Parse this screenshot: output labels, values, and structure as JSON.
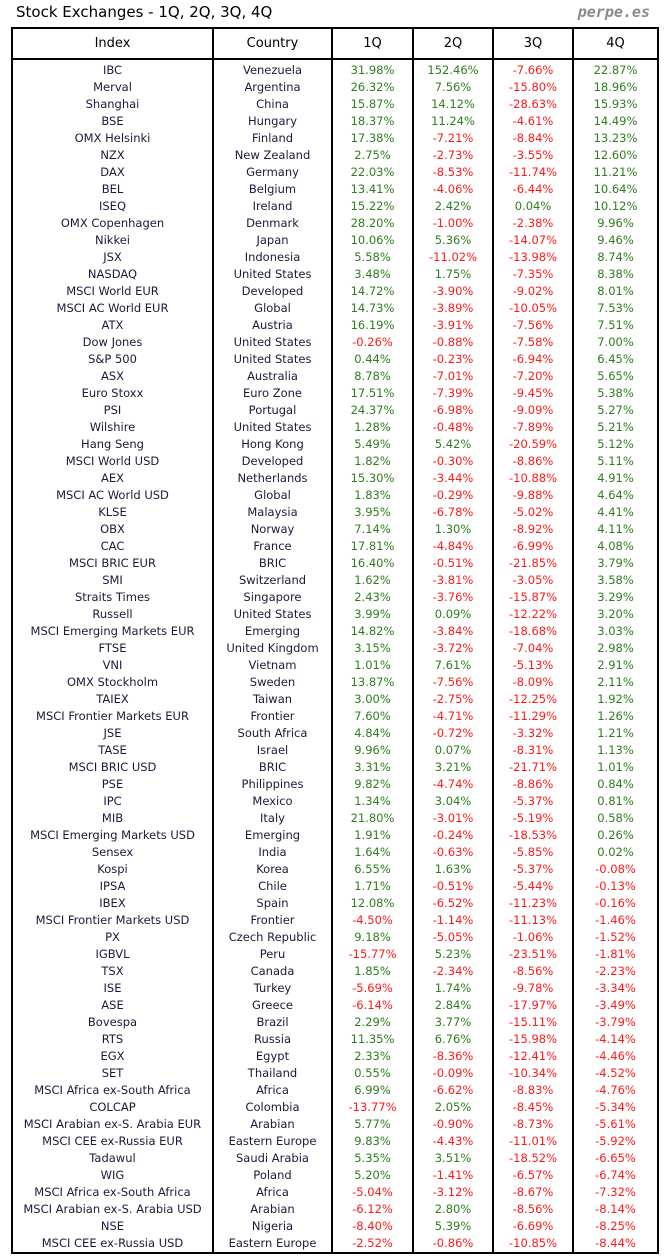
{
  "title": "Stock Exchanges - 1Q, 2Q, 3Q, 4Q",
  "brand": "perpe.es",
  "colors": {
    "positive": "#2e7d1e",
    "negative": "#ff1a1a"
  },
  "headers": [
    "Index",
    "Country",
    "1Q",
    "2Q",
    "3Q",
    "4Q"
  ],
  "rows": [
    [
      "IBC",
      "Venezuela",
      "31.98%",
      "152.46%",
      "-7.66%",
      "22.87%"
    ],
    [
      "Merval",
      "Argentina",
      "26.32%",
      "7.56%",
      "-15.80%",
      "18.96%"
    ],
    [
      "Shanghai",
      "China",
      "15.87%",
      "14.12%",
      "-28.63%",
      "15.93%"
    ],
    [
      "BSE",
      "Hungary",
      "18.37%",
      "11.24%",
      "-4.61%",
      "14.49%"
    ],
    [
      "OMX Helsinki",
      "Finland",
      "17.38%",
      "-7.21%",
      "-8.84%",
      "13.23%"
    ],
    [
      "NZX",
      "New Zealand",
      "2.75%",
      "-2.73%",
      "-3.55%",
      "12.60%"
    ],
    [
      "DAX",
      "Germany",
      "22.03%",
      "-8.53%",
      "-11.74%",
      "11.21%"
    ],
    [
      "BEL",
      "Belgium",
      "13.41%",
      "-4.06%",
      "-6.44%",
      "10.64%"
    ],
    [
      "ISEQ",
      "Ireland",
      "15.22%",
      "2.42%",
      "0.04%",
      "10.12%"
    ],
    [
      "OMX Copenhagen",
      "Denmark",
      "28.20%",
      "-1.00%",
      "-2.38%",
      "9.96%"
    ],
    [
      "Nikkei",
      "Japan",
      "10.06%",
      "5.36%",
      "-14.07%",
      "9.46%"
    ],
    [
      "JSX",
      "Indonesia",
      "5.58%",
      "-11.02%",
      "-13.98%",
      "8.74%"
    ],
    [
      "NASDAQ",
      "United States",
      "3.48%",
      "1.75%",
      "-7.35%",
      "8.38%"
    ],
    [
      "MSCI World EUR",
      "Developed",
      "14.72%",
      "-3.90%",
      "-9.02%",
      "8.01%"
    ],
    [
      "MSCI AC World EUR",
      "Global",
      "14.73%",
      "-3.89%",
      "-10.05%",
      "7.53%"
    ],
    [
      "ATX",
      "Austria",
      "16.19%",
      "-3.91%",
      "-7.56%",
      "7.51%"
    ],
    [
      "Dow Jones",
      "United States",
      "-0.26%",
      "-0.88%",
      "-7.58%",
      "7.00%"
    ],
    [
      "S&P 500",
      "United States",
      "0.44%",
      "-0.23%",
      "-6.94%",
      "6.45%"
    ],
    [
      "ASX",
      "Australia",
      "8.78%",
      "-7.01%",
      "-7.20%",
      "5.65%"
    ],
    [
      "Euro Stoxx",
      "Euro Zone",
      "17.51%",
      "-7.39%",
      "-9.45%",
      "5.38%"
    ],
    [
      "PSI",
      "Portugal",
      "24.37%",
      "-6.98%",
      "-9.09%",
      "5.27%"
    ],
    [
      "Wilshire",
      "United States",
      "1.28%",
      "-0.48%",
      "-7.89%",
      "5.21%"
    ],
    [
      "Hang Seng",
      "Hong Kong",
      "5.49%",
      "5.42%",
      "-20.59%",
      "5.12%"
    ],
    [
      "MSCI World USD",
      "Developed",
      "1.82%",
      "-0.30%",
      "-8.86%",
      "5.11%"
    ],
    [
      "AEX",
      "Netherlands",
      "15.30%",
      "-3.44%",
      "-10.88%",
      "4.91%"
    ],
    [
      "MSCI AC World USD",
      "Global",
      "1.83%",
      "-0.29%",
      "-9.88%",
      "4.64%"
    ],
    [
      "KLSE",
      "Malaysia",
      "3.95%",
      "-6.78%",
      "-5.02%",
      "4.41%"
    ],
    [
      "OBX",
      "Norway",
      "7.14%",
      "1.30%",
      "-8.92%",
      "4.11%"
    ],
    [
      "CAC",
      "France",
      "17.81%",
      "-4.84%",
      "-6.99%",
      "4.08%"
    ],
    [
      "MSCI BRIC EUR",
      "BRIC",
      "16.40%",
      "-0.51%",
      "-21.85%",
      "3.79%"
    ],
    [
      "SMI",
      "Switzerland",
      "1.62%",
      "-3.81%",
      "-3.05%",
      "3.58%"
    ],
    [
      "Straits Times",
      "Singapore",
      "2.43%",
      "-3.76%",
      "-15.87%",
      "3.29%"
    ],
    [
      "Russell",
      "United States",
      "3.99%",
      "0.09%",
      "-12.22%",
      "3.20%"
    ],
    [
      "MSCI Emerging Markets EUR",
      "Emerging",
      "14.82%",
      "-3.84%",
      "-18.68%",
      "3.03%"
    ],
    [
      "FTSE",
      "United Kingdom",
      "3.15%",
      "-3.72%",
      "-7.04%",
      "2.98%"
    ],
    [
      "VNI",
      "Vietnam",
      "1.01%",
      "7.61%",
      "-5.13%",
      "2.91%"
    ],
    [
      "OMX Stockholm",
      "Sweden",
      "13.87%",
      "-7.56%",
      "-8.09%",
      "2.11%"
    ],
    [
      "TAIEX",
      "Taiwan",
      "3.00%",
      "-2.75%",
      "-12.25%",
      "1.92%"
    ],
    [
      "MSCI Frontier Markets EUR",
      "Frontier",
      "7.60%",
      "-4.71%",
      "-11.29%",
      "1.26%"
    ],
    [
      "JSE",
      "South Africa",
      "4.84%",
      "-0.72%",
      "-3.32%",
      "1.21%"
    ],
    [
      "TASE",
      "Israel",
      "9.96%",
      "0.07%",
      "-8.31%",
      "1.13%"
    ],
    [
      "MSCI BRIC USD",
      "BRIC",
      "3.31%",
      "3.21%",
      "-21.71%",
      "1.01%"
    ],
    [
      "PSE",
      "Philippines",
      "9.82%",
      "-4.74%",
      "-8.86%",
      "0.84%"
    ],
    [
      "IPC",
      "Mexico",
      "1.34%",
      "3.04%",
      "-5.37%",
      "0.81%"
    ],
    [
      "MIB",
      "Italy",
      "21.80%",
      "-3.01%",
      "-5.19%",
      "0.58%"
    ],
    [
      "MSCI Emerging Markets USD",
      "Emerging",
      "1.91%",
      "-0.24%",
      "-18.53%",
      "0.26%"
    ],
    [
      "Sensex",
      "India",
      "1.64%",
      "-0.63%",
      "-5.85%",
      "0.02%"
    ],
    [
      "Kospi",
      "Korea",
      "6.55%",
      "1.63%",
      "-5.37%",
      "-0.08%"
    ],
    [
      "IPSA",
      "Chile",
      "1.71%",
      "-0.51%",
      "-5.44%",
      "-0.13%"
    ],
    [
      "IBEX",
      "Spain",
      "12.08%",
      "-6.52%",
      "-11.23%",
      "-0.16%"
    ],
    [
      "MSCI Frontier Markets USD",
      "Frontier",
      "-4.50%",
      "-1.14%",
      "-11.13%",
      "-1.46%"
    ],
    [
      "PX",
      "Czech Republic",
      "9.18%",
      "-5.05%",
      "-1.06%",
      "-1.52%"
    ],
    [
      "IGBVL",
      "Peru",
      "-15.77%",
      "5.23%",
      "-23.51%",
      "-1.81%"
    ],
    [
      "TSX",
      "Canada",
      "1.85%",
      "-2.34%",
      "-8.56%",
      "-2.23%"
    ],
    [
      "ISE",
      "Turkey",
      "-5.69%",
      "1.74%",
      "-9.78%",
      "-3.34%"
    ],
    [
      "ASE",
      "Greece",
      "-6.14%",
      "2.84%",
      "-17.97%",
      "-3.49%"
    ],
    [
      "Bovespa",
      "Brazil",
      "2.29%",
      "3.77%",
      "-15.11%",
      "-3.79%"
    ],
    [
      "RTS",
      "Russia",
      "11.35%",
      "6.76%",
      "-15.98%",
      "-4.14%"
    ],
    [
      "EGX",
      "Egypt",
      "2.33%",
      "-8.36%",
      "-12.41%",
      "-4.46%"
    ],
    [
      "SET",
      "Thailand",
      "0.55%",
      "-0.09%",
      "-10.34%",
      "-4.52%"
    ],
    [
      "MSCI Africa ex-South Africa",
      "Africa",
      "6.99%",
      "-6.62%",
      "-8.83%",
      "-4.76%"
    ],
    [
      "COLCAP",
      "Colombia",
      "-13.77%",
      "2.05%",
      "-8.45%",
      "-5.34%"
    ],
    [
      "MSCI Arabian ex-S. Arabia EUR",
      "Arabian",
      "5.77%",
      "-0.90%",
      "-8.73%",
      "-5.61%"
    ],
    [
      "MSCI CEE ex-Russia EUR",
      "Eastern Europe",
      "9.83%",
      "-4.43%",
      "-11.01%",
      "-5.92%"
    ],
    [
      "Tadawul",
      "Saudi Arabia",
      "5.35%",
      "3.51%",
      "-18.52%",
      "-6.65%"
    ],
    [
      "WIG",
      "Poland",
      "5.20%",
      "-1.41%",
      "-6.57%",
      "-6.74%"
    ],
    [
      "MSCI Africa ex-South Africa",
      "Africa",
      "-5.04%",
      "-3.12%",
      "-8.67%",
      "-7.32%"
    ],
    [
      "MSCI Arabian ex-S. Arabia USD",
      "Arabian",
      "-6.12%",
      "2.80%",
      "-8.56%",
      "-8.14%"
    ],
    [
      "NSE",
      "Nigeria",
      "-8.40%",
      "5.39%",
      "-6.69%",
      "-8.25%"
    ],
    [
      "MSCI CEE ex-Russia USD",
      "Eastern Europe",
      "-2.52%",
      "-0.86%",
      "-10.85%",
      "-8.44%"
    ]
  ]
}
